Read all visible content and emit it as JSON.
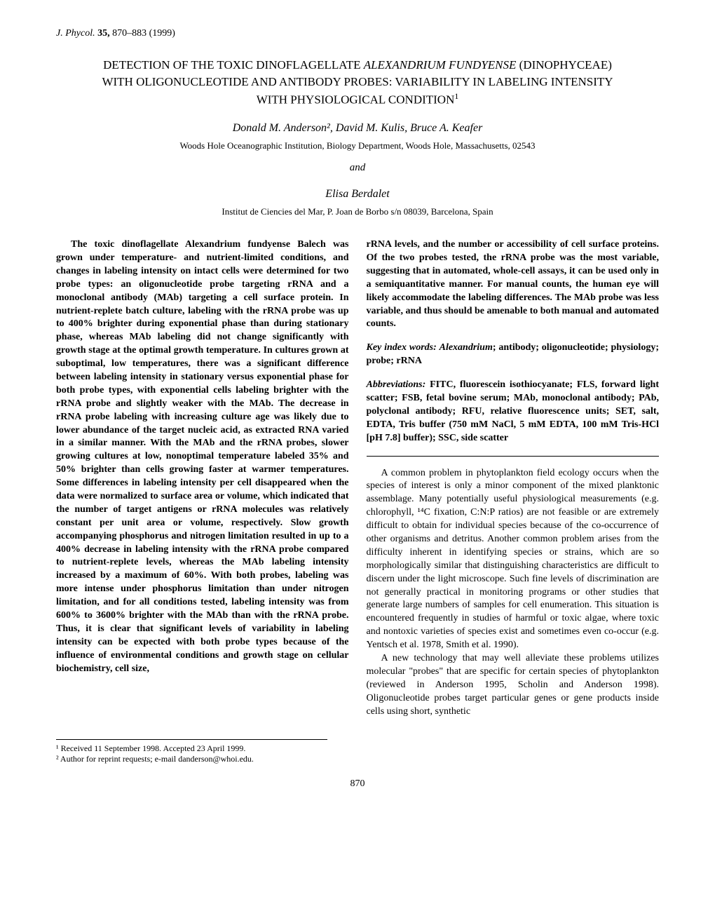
{
  "journal": {
    "name": "J. Phycol.",
    "volume": "35,",
    "pages": "870–883",
    "year": "(1999)"
  },
  "title": {
    "line1": "DETECTION OF THE TOXIC DINOFLAGELLATE ",
    "species": "ALEXANDRIUM FUNDYENSE",
    "line2": "(DINOPHYCEAE) WITH OLIGONUCLEOTIDE AND ANTIBODY PROBES: VARIABILITY IN LABELING INTENSITY WITH PHYSIOLOGICAL CONDITION",
    "super": "1"
  },
  "authors1": "Donald M. Anderson², David M. Kulis, Bruce A. Keafer",
  "affiliation1": "Woods Hole Oceanographic Institution, Biology Department, Woods Hole, Massachusetts, 02543",
  "and": "and",
  "authors2": "Elisa Berdalet",
  "affiliation2": "Institut de Ciencies del Mar, P. Joan de Borbo s/n 08039, Barcelona, Spain",
  "abstract": {
    "col1": "The toxic dinoflagellate Alexandrium fundyense Balech was grown under temperature- and nutrient-limited conditions, and changes in labeling intensity on intact cells were determined for two probe types: an oligonucleotide probe targeting rRNA and a monoclonal antibody (MAb) targeting a cell surface protein. In nutrient-replete batch culture, labeling with the rRNA probe was up to 400% brighter during exponential phase than during stationary phase, whereas MAb labeling did not change significantly with growth stage at the optimal growth temperature. In cultures grown at suboptimal, low temperatures, there was a significant difference between labeling intensity in stationary versus exponential phase for both probe types, with exponential cells labeling brighter with the rRNA probe and slightly weaker with the MAb. The decrease in rRNA probe labeling with increasing culture age was likely due to lower abundance of the target nucleic acid, as extracted RNA varied in a similar manner. With the MAb and the rRNA probes, slower growing cultures at low, nonoptimal temperature labeled 35% and 50% brighter than cells growing faster at warmer temperatures. Some differences in labeling intensity per cell disappeared when the data were normalized to surface area or volume, which indicated that the number of target antigens or rRNA molecules was relatively constant per unit area or volume, respectively. Slow growth accompanying phosphorus and nitrogen limitation resulted in up to a 400% decrease in labeling intensity with the rRNA probe compared to nutrient-replete levels, whereas the MAb labeling intensity increased by a maximum of 60%. With both probes, labeling was more intense under phosphorus limitation than under nitrogen limitation, and for all conditions tested, labeling intensity was from 600% to 3600% brighter with the MAb than with the rRNA probe. Thus, it is clear that significant levels of variability in labeling intensity can be expected with both probe types because of the influence of environmental conditions and growth stage on cellular biochemistry, cell size,",
    "col2_top": "rRNA levels, and the number or accessibility of cell surface proteins. Of the two probes tested, the rRNA probe was the most variable, suggesting that in automated, whole-cell assays, it can be used only in a semiquantitative manner. For manual counts, the human eye will likely accommodate the labeling differences. The MAb probe was less variable, and thus should be amenable to both manual and automated counts."
  },
  "keywords": {
    "label": "Key index words:",
    "text": " Alexandrium; antibody; oligonucleotide; physiology; probe; rRNA"
  },
  "abbreviations": {
    "label": "Abbreviations:",
    "text": " FITC, fluorescein isothiocyanate; FLS, forward light scatter; FSB, fetal bovine serum; MAb, monoclonal antibody; PAb, polyclonal antibody; RFU, relative fluorescence units; SET, salt, EDTA, Tris buffer (750 mM NaCl, 5 mM EDTA, 100 mM Tris-HCl [pH 7.8] buffer); SSC, side scatter"
  },
  "body": {
    "para1": "A common problem in phytoplankton field ecology occurs when the species of interest is only a minor component of the mixed planktonic assemblage. Many potentially useful physiological measurements (e.g. chlorophyll, ¹⁴C fixation, C:N:P ratios) are not feasible or are extremely difficult to obtain for individual species because of the co-occurrence of other organisms and detritus. Another common problem arises from the difficulty inherent in identifying species or strains, which are so morphologically similar that distinguishing characteristics are difficult to discern under the light microscope. Such fine levels of discrimination are not generally practical in monitoring programs or other studies that generate large numbers of samples for cell enumeration. This situation is encountered frequently in studies of harmful or toxic algae, where toxic and nontoxic varieties of species exist and sometimes even co-occur (e.g. Yentsch et al. 1978, Smith et al. 1990).",
    "para2": "A new technology that may well alleviate these problems utilizes molecular \"probes\" that are specific for certain species of phytoplankton (reviewed in Anderson 1995, Scholin and Anderson 1998). Oligonucleotide probes target particular genes or gene products inside cells using short, synthetic"
  },
  "footnotes": {
    "f1": "¹ Received 11 September 1998. Accepted 23 April 1999.",
    "f2": "² Author for reprint requests; e-mail danderson@whoi.edu."
  },
  "page_number": "870"
}
